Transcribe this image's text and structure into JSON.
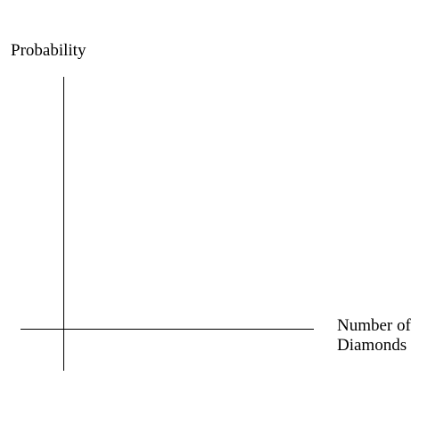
{
  "chart_data": {
    "type": "bar",
    "title": "",
    "ylabel": "Probability",
    "xlabel": "Number of Diamonds",
    "xlabel_lines": [
      "Number of",
      "Diamonds"
    ],
    "categories": [],
    "values": [],
    "grid": false,
    "legend": "none",
    "colors": {
      "axis": "#000000",
      "background": "#ffffff"
    }
  }
}
